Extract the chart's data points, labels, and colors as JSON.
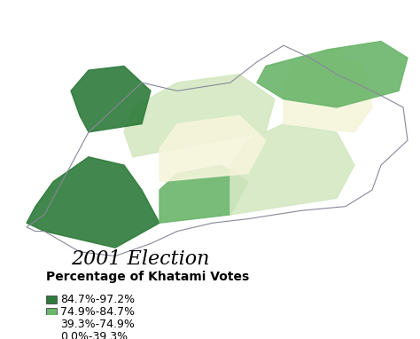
{
  "title": "2001 Election",
  "subtitle": "Percentage of Khatami Votes",
  "legend_items": [
    {
      "label": "84.7%-97.2%",
      "color": "#2d7a3a"
    },
    {
      "label": "74.9%-84.7%",
      "color": "#6ab56a"
    },
    {
      "label": "39.3%-74.9%",
      "color": "#d4e8c2"
    },
    {
      "label": "0.0%-39.3%",
      "color": "#f5f5dc"
    }
  ],
  "background_color": "#ffffff",
  "map_bg": "#f0ede0",
  "fig_width": 4.74,
  "fig_height": 3.82,
  "dpi": 100,
  "title_fontsize": 16,
  "subtitle_fontsize": 10,
  "legend_fontsize": 9
}
